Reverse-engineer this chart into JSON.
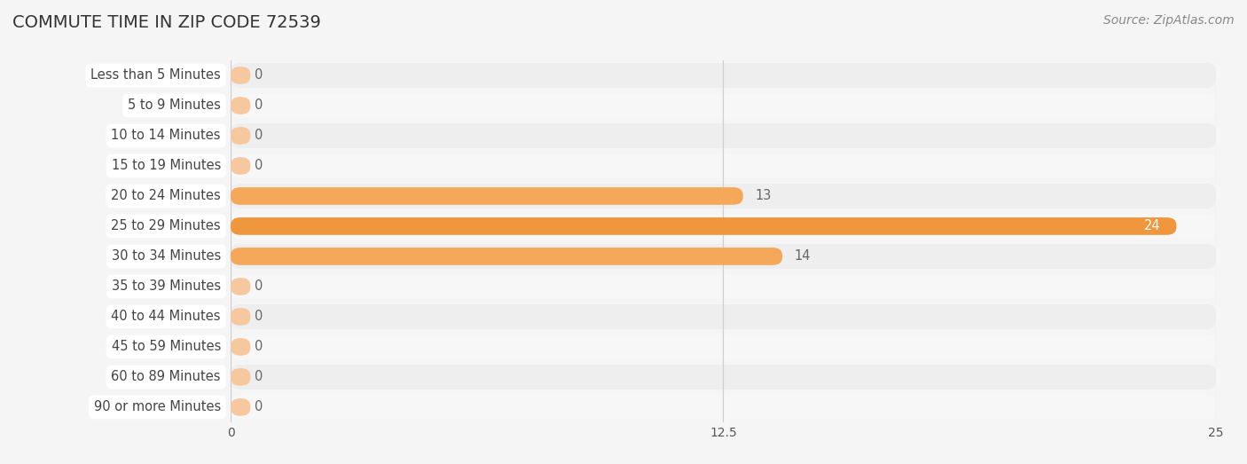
{
  "title": "COMMUTE TIME IN ZIP CODE 72539",
  "source": "Source: ZipAtlas.com",
  "categories": [
    "Less than 5 Minutes",
    "5 to 9 Minutes",
    "10 to 14 Minutes",
    "15 to 19 Minutes",
    "20 to 24 Minutes",
    "25 to 29 Minutes",
    "30 to 34 Minutes",
    "35 to 39 Minutes",
    "40 to 44 Minutes",
    "45 to 59 Minutes",
    "60 to 89 Minutes",
    "90 or more Minutes"
  ],
  "values": [
    0,
    0,
    0,
    0,
    13,
    24,
    14,
    0,
    0,
    0,
    0,
    0
  ],
  "xlim": [
    0,
    25
  ],
  "xticks": [
    0,
    12.5,
    25
  ],
  "bar_color_zero": "#f5c8a0",
  "bar_color_nonzero": "#f5a85a",
  "bar_color_max": "#f0963c",
  "row_bg_even": "#eeeeee",
  "row_bg_odd": "#f7f7f7",
  "fig_bg": "#f5f5f5",
  "title_color": "#333333",
  "label_color": "#444444",
  "value_color_inside": "#ffffff",
  "value_color_outside": "#666666",
  "source_color": "#888888",
  "grid_color": "#cccccc",
  "title_fontsize": 14,
  "label_fontsize": 10.5,
  "value_fontsize": 10.5,
  "source_fontsize": 10,
  "tick_fontsize": 10
}
